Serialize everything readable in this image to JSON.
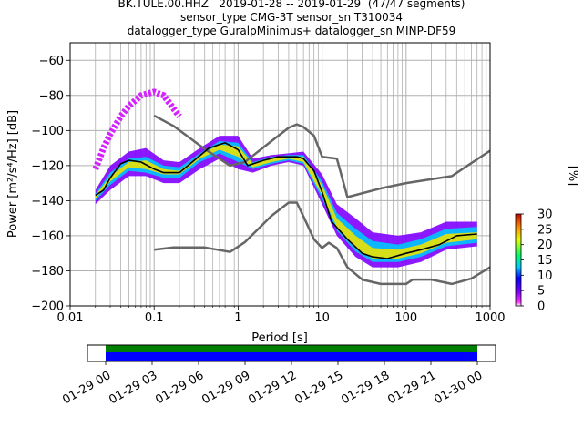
{
  "title_lines": [
    "BK.TULE.00.HHZ   2019-01-28 -- 2019-01-29  (47/47 segments)",
    "sensor_type CMG-3T sensor_sn T310034",
    "datalogger_type GuralpMinimus+ datalogger_sn MINP-DF59"
  ],
  "chart_data": {
    "type": "heatmap",
    "xlabel": "Period [s]",
    "ylabel": "Power [m²/s⁴/Hz] [dB]",
    "xscale": "log",
    "xlim": [
      0.01,
      1000
    ],
    "ylim": [
      -200,
      -50
    ],
    "xticks": [
      0.01,
      0.1,
      1,
      10,
      100,
      1000
    ],
    "xtick_labels": [
      "0.01",
      "0.1",
      "1",
      "10",
      "100",
      "1000"
    ],
    "yticks": [
      -200,
      -180,
      -160,
      -140,
      -120,
      -100,
      -80,
      -60
    ],
    "ytick_labels": [
      "−200",
      "−180",
      "−160",
      "−140",
      "−120",
      "−100",
      "−80",
      "−60"
    ],
    "grid": true,
    "colorbar": {
      "label": "[%]",
      "range": [
        0,
        30
      ],
      "ticks": [
        0,
        5,
        10,
        15,
        20,
        25,
        30
      ],
      "tick_labels": [
        "0",
        "5",
        "10",
        "15",
        "20",
        "25",
        "30"
      ],
      "colormap": "pqlx"
    },
    "noise_model_high": {
      "x": [
        0.1,
        0.17,
        0.4,
        0.8,
        1.2,
        2.5,
        4.0,
        5.0,
        6.0,
        8.0,
        10,
        15,
        20,
        50,
        100,
        350,
        1000
      ],
      "y": [
        -91.5,
        -97.4,
        -110.5,
        -120.0,
        -118.0,
        -106.0,
        -98.5,
        -96.5,
        -98.0,
        -103.0,
        -115.0,
        -116.0,
        -138.0,
        -133.0,
        -130.0,
        -126.0,
        -111.5
      ]
    },
    "noise_model_low": {
      "x": [
        0.1,
        0.17,
        0.4,
        0.8,
        1.2,
        2.5,
        4.0,
        5.0,
        6.0,
        8.0,
        10,
        12,
        15,
        20,
        30,
        50,
        100,
        120,
        200,
        350,
        600,
        1000
      ],
      "y": [
        -168.0,
        -166.7,
        -166.7,
        -169.2,
        -163.7,
        -148.6,
        -141.1,
        -141.1,
        -149.0,
        -162.0,
        -167.0,
        -164.0,
        -167.0,
        -178.0,
        -185.0,
        -187.5,
        -187.5,
        -185.0,
        -185.0,
        -187.5,
        -184.4,
        -178.0
      ]
    },
    "mode_curve": {
      "x": [
        0.02,
        0.025,
        0.03,
        0.04,
        0.05,
        0.07,
        0.1,
        0.13,
        0.2,
        0.3,
        0.45,
        0.7,
        1.0,
        1.3,
        2.0,
        3.0,
        4.0,
        5.0,
        6.0,
        8.0,
        10,
        13,
        20,
        30,
        40,
        60,
        100,
        150,
        250,
        400,
        700
      ],
      "y": [
        -137,
        -134,
        -127,
        -119,
        -117,
        -118,
        -122,
        -124,
        -124,
        -117,
        -110,
        -107,
        -111,
        -120,
        -117,
        -115,
        -115,
        -115,
        -116,
        -123,
        -135,
        -152,
        -162,
        -170,
        -172,
        -173,
        -170,
        -168,
        -165,
        -160,
        -159
      ]
    },
    "pdf_bands": [
      {
        "x": [
          0.02,
          0.03,
          0.05,
          0.08,
          0.13,
          0.2,
          0.35,
          0.6,
          1.0,
          1.5,
          2.5,
          4.0,
          6.0,
          10,
          15,
          25,
          40,
          80,
          150,
          300,
          700
        ],
        "y_lo": [
          -142,
          -134,
          -126,
          -126,
          -130,
          -130,
          -122,
          -116,
          -122,
          -124,
          -120,
          -118,
          -120,
          -142,
          -160,
          -172,
          -178,
          -178,
          -175,
          -168,
          -166
        ],
        "y_hi": [
          -134,
          -120,
          -112,
          -110,
          -117,
          -118,
          -110,
          -103,
          -103,
          -116,
          -114,
          -113,
          -112,
          -125,
          -142,
          -150,
          -158,
          -160,
          -158,
          -152,
          -152
        ],
        "value": 4
      },
      {
        "x": [
          0.02,
          0.03,
          0.05,
          0.08,
          0.13,
          0.2,
          0.35,
          0.6,
          1.0,
          1.5,
          2.5,
          4.0,
          6.0,
          10,
          15,
          25,
          40,
          80,
          150,
          300,
          700
        ],
        "y_lo": [
          -140,
          -131,
          -123,
          -124,
          -127,
          -127,
          -118,
          -113,
          -118,
          -122,
          -119,
          -117,
          -119,
          -139,
          -157,
          -169,
          -175,
          -175,
          -172,
          -166,
          -164
        ],
        "y_hi": [
          -136,
          -124,
          -116,
          -115,
          -120,
          -121,
          -113,
          -106,
          -107,
          -118,
          -115,
          -114,
          -114,
          -129,
          -147,
          -156,
          -163,
          -165,
          -162,
          -156,
          -155
        ],
        "value": 12
      },
      {
        "x": [
          0.02,
          0.03,
          0.05,
          0.08,
          0.13,
          0.2,
          0.35,
          0.6,
          1.0,
          1.5,
          2.5,
          4.0,
          6.0,
          10,
          15,
          25,
          40,
          80,
          150,
          300,
          700
        ],
        "y_lo": [
          -139,
          -129,
          -121,
          -122,
          -125,
          -125,
          -116,
          -111,
          -115,
          -121,
          -118,
          -116,
          -118,
          -137,
          -155,
          -167,
          -173,
          -173,
          -170,
          -164,
          -162
        ],
        "y_hi": [
          -137,
          -126,
          -118,
          -117,
          -122,
          -123,
          -114,
          -108,
          -109,
          -119,
          -116,
          -115,
          -115,
          -131,
          -150,
          -160,
          -167,
          -168,
          -165,
          -159,
          -158
        ],
        "value": 22
      }
    ],
    "pdf_upper_branch": {
      "x": [
        0.02,
        0.025,
        0.03,
        0.04,
        0.05,
        0.07,
        0.1,
        0.13,
        0.2
      ],
      "y": [
        -122,
        -110,
        -102,
        -92,
        -86,
        -80,
        -78,
        -80,
        -92
      ],
      "value": 2
    }
  },
  "time_axis": {
    "tick_labels": [
      "01-29 00",
      "01-29 03",
      "01-29 06",
      "01-29 09",
      "01-29 12",
      "01-29 15",
      "01-29 18",
      "01-29 21",
      "01-30 00"
    ],
    "coverage": [
      0.0,
      1.0
    ],
    "colors": {
      "top": "#008000",
      "bottom": "#0000ff"
    }
  }
}
